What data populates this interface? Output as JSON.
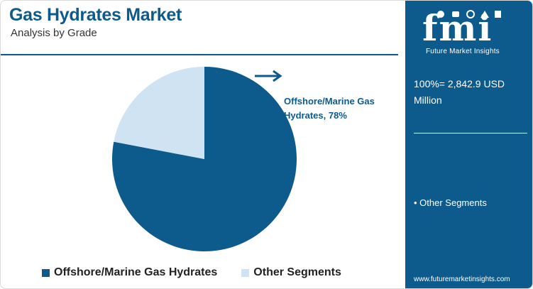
{
  "header": {
    "title": "Gas Hydrates Market",
    "subtitle": "Analysis by Grade"
  },
  "chart_data": {
    "type": "pie",
    "title": "Gas Hydrates Market",
    "subtitle": "Analysis by Grade",
    "slices": [
      {
        "name": "Offshore/Marine Gas Hydrates",
        "value": 78,
        "color": "#0d5a8c"
      },
      {
        "name": "Other Segments",
        "value": 22,
        "color": "#cfe3f2"
      }
    ],
    "annotation": "Offshore/Marine Gas Hydrates, 78%",
    "legend_position": "bottom"
  },
  "colors": {
    "brand": "#0d5a8c",
    "light": "#cfe3f2"
  },
  "sidebar": {
    "logo_text": "fmi",
    "logo_subtitle": "Future Market Insights",
    "total_value": "100%= 2,842.9 USD Million",
    "segment_item": "• Other Segments",
    "url": "www.futuremarketinsights.com"
  }
}
